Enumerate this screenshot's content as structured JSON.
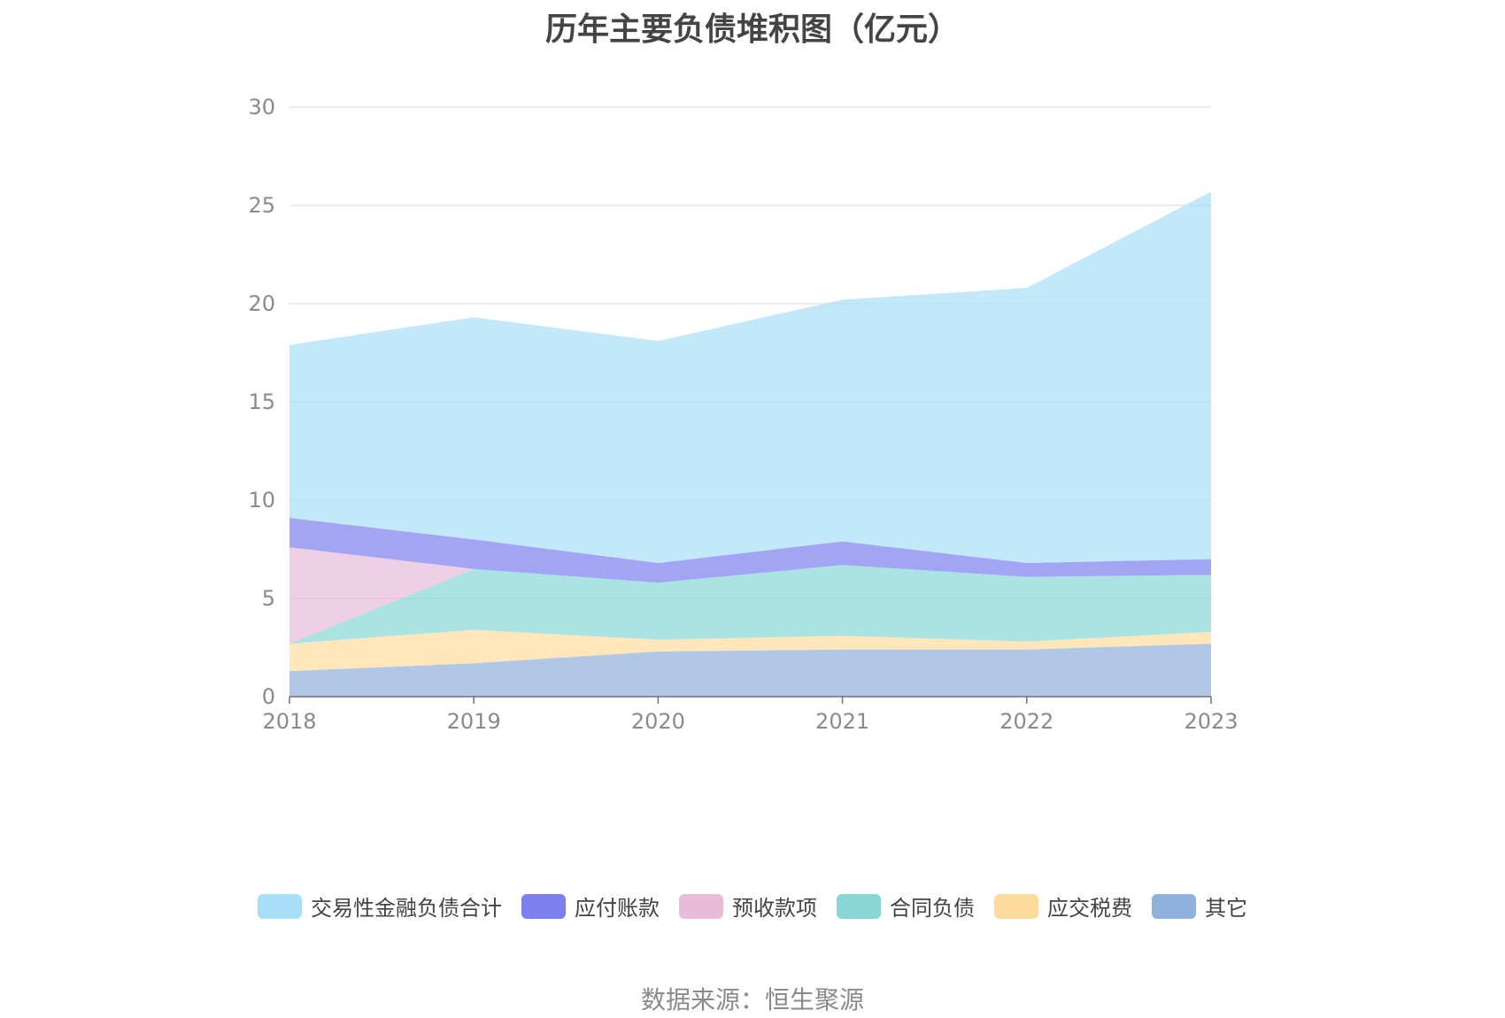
{
  "chart_data": {
    "type": "area",
    "stacked": true,
    "title": "历年主要负债堆积图（亿元）",
    "x": [
      "2018",
      "2019",
      "2020",
      "2021",
      "2022",
      "2023"
    ],
    "yticks": [
      "0",
      "5",
      "10",
      "15",
      "20",
      "25",
      "30"
    ],
    "ylim": [
      0,
      30
    ],
    "grid": true,
    "legend_position": "bottom",
    "series": [
      {
        "name": "其它",
        "color": "#8fb0dc",
        "values": [
          1.3,
          1.7,
          2.3,
          2.4,
          2.4,
          2.7
        ]
      },
      {
        "name": "应交税费",
        "color": "#ffdb9e",
        "values": [
          1.4,
          1.7,
          0.6,
          0.7,
          0.4,
          0.6
        ]
      },
      {
        "name": "合同负债",
        "color": "#88d6d6",
        "values": [
          0.0,
          3.1,
          2.9,
          3.6,
          3.3,
          2.9
        ]
      },
      {
        "name": "预收款项",
        "color": "#e8bbd8",
        "values": [
          4.9,
          0.0,
          0.0,
          0.0,
          0.0,
          0.0
        ]
      },
      {
        "name": "应付账款",
        "color": "#7b7ff0",
        "values": [
          1.5,
          1.5,
          1.0,
          1.2,
          0.7,
          0.8
        ]
      },
      {
        "name": "交易性金融负债合计",
        "color": "#a9def8",
        "values": [
          8.8,
          11.3,
          11.3,
          12.3,
          14.0,
          18.7
        ]
      }
    ],
    "legend_order": [
      "交易性金融负债合计",
      "应付账款",
      "预收款项",
      "合同负债",
      "应交税费",
      "其它"
    ]
  },
  "source": "数据来源：恒生聚源"
}
